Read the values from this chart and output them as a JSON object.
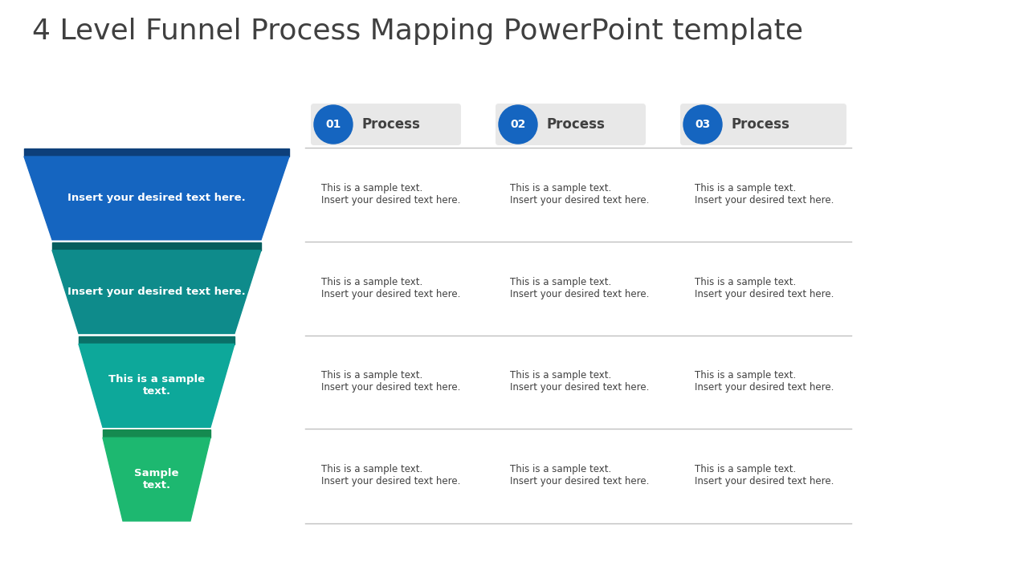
{
  "title": "4 Level Funnel Process Mapping PowerPoint template",
  "title_color": "#404040",
  "title_fontsize": 26,
  "background_color": "#ffffff",
  "funnel_levels": [
    {
      "label": "Insert your desired text here.",
      "color": "#1565C0",
      "shadow_color": "#0D3F7A"
    },
    {
      "label": "Insert your desired text here.",
      "color": "#0E8B8B",
      "shadow_color": "#065E5E"
    },
    {
      "label": "This is a sample\ntext.",
      "color": "#0DA89A",
      "shadow_color": "#0A7068"
    },
    {
      "label": "Sample\ntext.",
      "color": "#1DB870",
      "shadow_color": "#158A50"
    }
  ],
  "process_labels": [
    "01",
    "02",
    "03"
  ],
  "process_text": "Process",
  "process_circle_color": "#1565C0",
  "process_circle_text_color": "#ffffff",
  "process_badge_bg": "#e8e8e8",
  "row_texts": [
    [
      "This is a sample text.\nInsert your desired text here.",
      "This is a sample text.\nInsert your desired text here.",
      "This is a sample text.\nInsert your desired text here."
    ],
    [
      "This is a sample text.\nInsert your desired text here.",
      "This is a sample text.\nInsert your desired text here.",
      "This is a sample text.\nInsert your desired text here."
    ],
    [
      "This is a sample text.\nInsert your desired text here.",
      "This is a sample text.\nInsert your desired text here.",
      "This is a sample text.\nInsert your desired text here."
    ],
    [
      "This is a sample text.\nInsert your desired text here.",
      "This is a sample text.\nInsert your desired text here.",
      "This is a sample text.\nInsert your desired text here."
    ]
  ],
  "row_text_color": "#404040",
  "separator_color": "#c0c0c0"
}
